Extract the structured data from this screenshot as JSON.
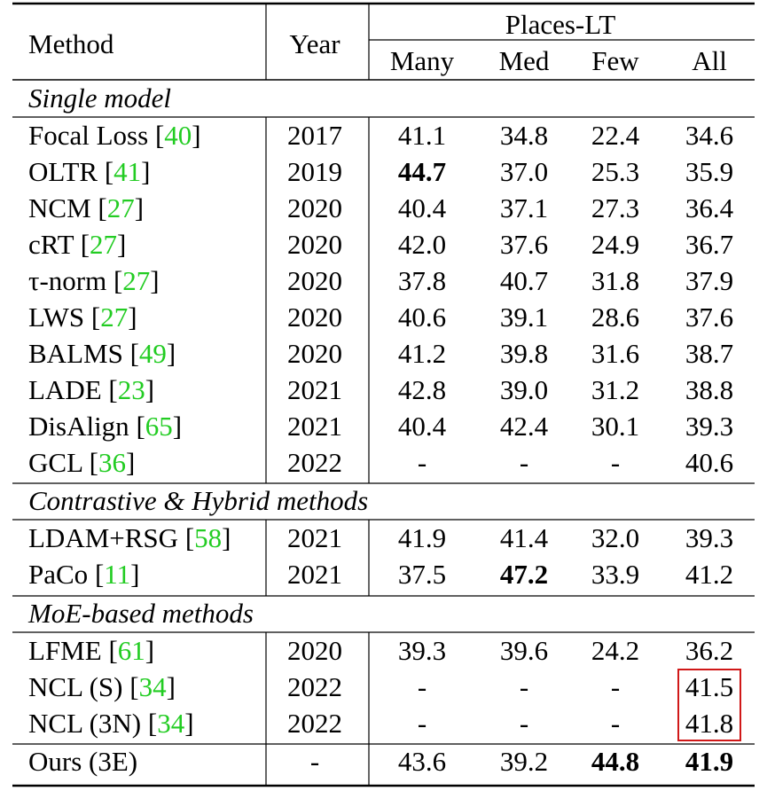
{
  "header": {
    "method": "Method",
    "year": "Year",
    "group": "Places-LT",
    "cols": [
      "Many",
      "Med",
      "Few",
      "All"
    ]
  },
  "sections": [
    {
      "title": "Single model",
      "rows": [
        {
          "name": "Focal Loss",
          "ref": "40",
          "year": "2017",
          "vals": [
            "41.1",
            "34.8",
            "22.4",
            "34.6"
          ],
          "bold": []
        },
        {
          "name": "OLTR",
          "ref": "41",
          "year": "2019",
          "vals": [
            "44.7",
            "37.0",
            "25.3",
            "35.9"
          ],
          "bold": [
            0
          ]
        },
        {
          "name": "NCM",
          "ref": "27",
          "year": "2020",
          "vals": [
            "40.4",
            "37.1",
            "27.3",
            "36.4"
          ],
          "bold": []
        },
        {
          "name": "cRT",
          "ref": "27",
          "year": "2020",
          "vals": [
            "42.0",
            "37.6",
            "24.9",
            "36.7"
          ],
          "bold": []
        },
        {
          "name": "τ-norm ",
          "ref": "27",
          "year": "2020",
          "vals": [
            "37.8",
            "40.7",
            "31.8",
            "37.9"
          ],
          "bold": []
        },
        {
          "name": "LWS",
          "ref": "27",
          "year": "2020",
          "vals": [
            "40.6",
            "39.1",
            "28.6",
            "37.6"
          ],
          "bold": []
        },
        {
          "name": "BALMS",
          "ref": "49",
          "year": "2020",
          "vals": [
            "41.2",
            "39.8",
            "31.6",
            "38.7"
          ],
          "bold": []
        },
        {
          "name": "LADE",
          "ref": "23",
          "year": "2021",
          "vals": [
            "42.8",
            "39.0",
            "31.2",
            "38.8"
          ],
          "bold": []
        },
        {
          "name": "DisAlign",
          "ref": "65",
          "year": "2021",
          "vals": [
            "40.4",
            "42.4",
            "30.1",
            "39.3"
          ],
          "bold": []
        },
        {
          "name": "GCL",
          "ref": "36",
          "year": "2022",
          "vals": [
            "-",
            "-",
            "-",
            "40.6"
          ],
          "bold": []
        }
      ]
    },
    {
      "title": "Contrastive & Hybrid methods",
      "rows": [
        {
          "name": "LDAM+RSG",
          "ref": "58",
          "year": "2021",
          "vals": [
            "41.9",
            "41.4",
            "32.0",
            "39.3"
          ],
          "bold": []
        },
        {
          "name": "PaCo",
          "ref": "11",
          "year": "2021",
          "vals": [
            "37.5",
            "47.2",
            "33.9",
            "41.2"
          ],
          "bold": [
            1
          ]
        }
      ]
    },
    {
      "title": "MoE-based methods",
      "rows": [
        {
          "name": "LFME",
          "ref": "61",
          "year": "2020",
          "vals": [
            "39.3",
            "39.6",
            "24.2",
            "36.2"
          ],
          "bold": []
        },
        {
          "name": "NCL (S)",
          "ref": "34",
          "year": "2022",
          "vals": [
            "-",
            "-",
            "-",
            "41.5"
          ],
          "bold": []
        },
        {
          "name": "NCL (3N)",
          "ref": "34",
          "year": "2022",
          "vals": [
            "-",
            "-",
            "-",
            "41.8"
          ],
          "bold": []
        }
      ]
    }
  ],
  "final_row": {
    "name": "Ours (3E)",
    "ref": "",
    "year": "-",
    "vals": [
      "43.6",
      "39.2",
      "44.8",
      "41.9"
    ],
    "bold": [
      2,
      3
    ]
  },
  "highlight_color": "#d01818",
  "ref_color": "#22cc22"
}
